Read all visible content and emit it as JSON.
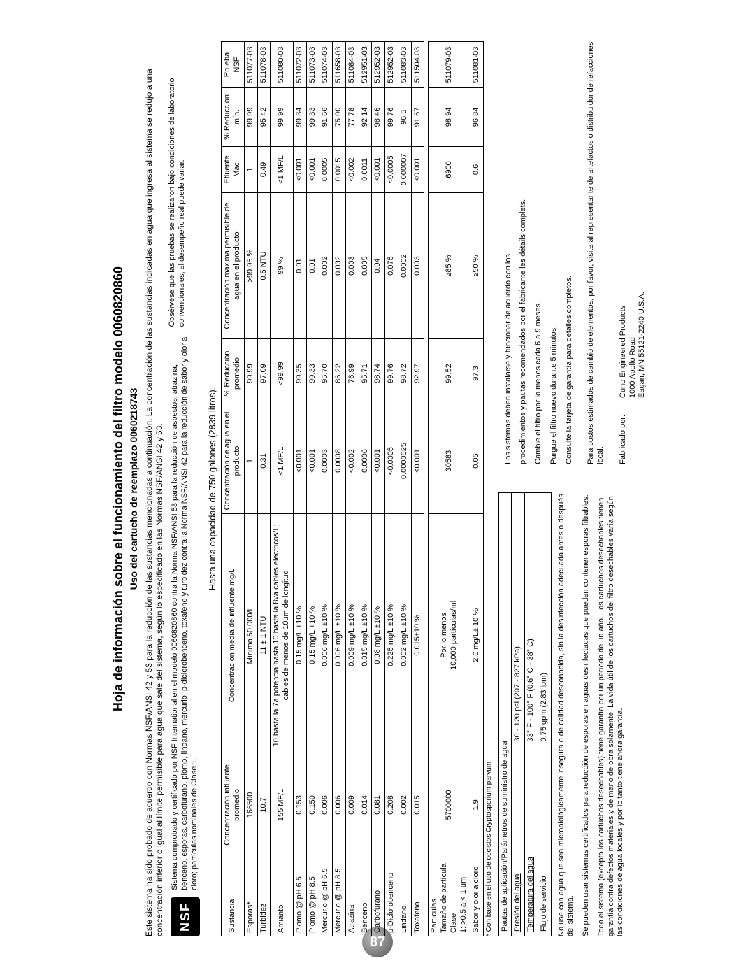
{
  "page_number": "87",
  "title": "Hoja de información sobre el funcionamiento del filtro modelo 0060820860",
  "subtitle": "Uso del cartucho de reemplazo 0060218743",
  "intro": "Este sistema ha sido probado de acuerdo con Normas NSF/ANSI 42 y 53 para la reducción de las sustancias mencionadas a continuación.  La concentración de las sustancias indicadas en agua que ingresa al sistema se redujo a una concentración inferior o igual al límite permisible para agua que sale del sistema, según lo especificado en las Normas NSF/ANSI 42 y 53.",
  "nsf_badge": "NSF",
  "nsf_text": "Sistema comprobado y certificado por NSF International en el modelo 0060820860 contra la Norma NSF/ANSI 53 para la reducción de asbestos, atrazina, benceno, esporas, carbofurano, plomo, lindano, mercurio, p-diclorobenceno, toxafeno y turbidez contra la Norma NSF/ANSI 42 para la reducción de sabor y olor a cloro; partículas nominales de Clase 1.",
  "right_note": "Obsérvese que las pruebas se realizaron bajo condiciones de laboratorio convencionales, el desempeño real puede variar.",
  "capacity": "Hasta una capacidad de 750 galones (2839 litros).",
  "headers": {
    "c0": "Sustancia",
    "c1": "Concentración influente promedio",
    "c2": "Concentración media de influente mg/L",
    "c3": "Concentración de agua en el producto",
    "c4": "% Reducción promedio",
    "c5": "Concentración máxima permisible de agua en el producto",
    "c6": "Efluente Mac",
    "c7": "% Reducción mín.",
    "c8": "Prueba NSF"
  },
  "rows": [
    {
      "c0": "Esporas*",
      "c1": "166500",
      "c2": "Mínimo 50,000/L",
      "c3": "1",
      "c4": "99.99",
      "c5": ">99.95 %",
      "c6": "1",
      "c7": "99.99",
      "c8": "511077-03"
    },
    {
      "c0": "Turbidez",
      "c1": "10.7",
      "c2": "11 ± 1 NTU",
      "c3": "0.31",
      "c4": "97.09",
      "c5": "0.5 NTU",
      "c6": "0.49",
      "c7": "95.42",
      "c8": "511078-03"
    },
    {
      "c0": "Amianto",
      "c1": "155 MF/L",
      "c2": "10 hasta la 7a potencia hasta 10 hasta la 8va cables eléctricos/L; cables de menos de 10um de longitud",
      "c3": "<1 MF/L",
      "c4": "<99.99",
      "c5": "99 %",
      "c6": "<1 MF/L",
      "c7": "99.99",
      "c8": "511080-03"
    },
    {
      "c0": "Plomo @ pH 6.5",
      "c1": "0.153",
      "c2": "0.15 mg/L +10 %",
      "c3": "<0.001",
      "c4": "99.35",
      "c5": "0.01",
      "c6": "<0.001",
      "c7": "99.34",
      "c8": "511072-03"
    },
    {
      "c0": "Plomo @ pH 8.5",
      "c1": "0.150",
      "c2": "0.15 mg/L +10 %",
      "c3": "<0.001",
      "c4": "99.33",
      "c5": "0.01",
      "c6": "<0.001",
      "c7": "99.33",
      "c8": "511073-03"
    },
    {
      "c0": "Mercurio @ pH 6.5",
      "c1": "0.006",
      "c2": "0.006 mg/L ±10 %",
      "c3": "0.0003",
      "c4": "95.70",
      "c5": "0.002",
      "c6": "0.0005",
      "c7": "91.66",
      "c8": "511074-03"
    },
    {
      "c0": "Mercurio @ pH 8.5",
      "c1": "0.006",
      "c2": "0.006 mg/L ±10 %",
      "c3": "0.0008",
      "c4": "86.22",
      "c5": "0.002",
      "c6": "0.0015",
      "c7": "75.00",
      "c8": "511658-03"
    },
    {
      "c0": "Atrazina",
      "c1": "0.009",
      "c2": "0.009 mg/L ±10 %",
      "c3": "<0.002",
      "c4": "76.99",
      "c5": "0.003",
      "c6": "<0.002",
      "c7": "77.78",
      "c8": "511084-03"
    },
    {
      "c0": "Benceno",
      "c1": "0.014",
      "c2": "0.015 mg/L ±10 %",
      "c3": "0.0006",
      "c4": "95.71",
      "c5": "0.005",
      "c6": "0.0011",
      "c7": "92.14",
      "c8": "512951-03"
    },
    {
      "c0": "Carbofurano",
      "c1": "0.081",
      "c2": "0.08 mg/L ±10 %",
      "c3": "<0.001",
      "c4": "98.74",
      "c5": "0.04",
      "c6": "<0.001",
      "c7": "98.46",
      "c8": "512952-03"
    },
    {
      "c0": "p-Diclorobenceno",
      "c1": "0.208",
      "c2": "0.225 mg/L ±10 %",
      "c3": "<0.0005",
      "c4": "99.76",
      "c5": "0.075",
      "c6": "<0.0005",
      "c7": "99.76",
      "c8": "512952-03"
    },
    {
      "c0": "Lindano",
      "c1": "0.002",
      "c2": "0.002 mg/L ±10 %",
      "c3": "0.0000025",
      "c4": "98.72",
      "c5": "0.0002",
      "c6": "0.000007",
      "c7": "96.5",
      "c8": "511083-03"
    },
    {
      "c0": "Toxafeno",
      "c1": "0.015",
      "c2": "0.015±10 %",
      "c3": "<0.001",
      "c4": "92.97",
      "c5": "0.003",
      "c6": "<0.001",
      "c7": "91.67",
      "c8": "511504.03"
    }
  ],
  "rows2": [
    {
      "c0": "Partículas\nTamaño de partícula Clase\n1: >0.5 a < 1 um",
      "c1": "5700000",
      "c2": "Por lo menos\n10,000 partículas/ml",
      "c3": "30583",
      "c4": "99.52",
      "c5": "≥85 %",
      "c6": "6900",
      "c7": "98.94",
      "c8": "511079-03"
    },
    {
      "c0": "Sabor y olor a cloro",
      "c1": "1.9",
      "c2": "2.0 mg/L± 10 %",
      "c3": "0.05",
      "c4": "97.3",
      "c5": "≥50 %",
      "c6": "0.6",
      "c7": "96.84",
      "c8": "511081-03"
    }
  ],
  "footnote": "* Con base en el uso de oocistos Cryptosporium parvum",
  "params_title": "Pautas de aplicación/Parámetros de suministro de agua",
  "params": [
    {
      "k": "Presión del agua",
      "v": "30 - 120 psi (207 - 827 kPa)"
    },
    {
      "k": "Temperatura del agua",
      "v": "33° F - 100° F (0.6° C - 38° C)"
    },
    {
      "k": "Flujo de servicio",
      "v": "0.75 gpm (2.83 lpm)"
    }
  ],
  "right_lines": {
    "l1": "Los sistemas deben instalarse y funcionar de acuerdo con los",
    "l2": "procedimientos y pautas recomendados por el fabricante les détails complets.",
    "l3": "Cambie el filtro por lo menos cada 6 a 9 meses.",
    "l4": "Purgue el filtro nuevo durante 5 minutos.",
    "l5": "Consulte la tarjeta de garantía para detalles completos."
  },
  "left_p1": "No use con agua que sea microbiológicamente insegura o de calidad desconocida, sin la desinfección adecuada antes o después del sistema.",
  "left_p2": "Se pueden usar sistemas certificados para reducción de esporas en aguas desinfectadas que pueden contener esporas filtrables.",
  "left_p3": "Todo el sistema (excepto los cartuchos desechables) tiene garantía por un período de un año. Los cartuchos desechables tienen garantía contra defectos materiales y de mano de obra solamente. La vida útil de los cartuchos del filtro desechables varía según las condiciones de agua locales y por lo tanto tiene ahora garantía.",
  "right_p1": "Para costos estimados de cambio de elementos, por favor, visite al representante de artefactos o distribuidor de refacciones local.",
  "manuf_label": "Fabricado por:",
  "manuf": {
    "l1": "Cuno Engineered Products",
    "l2": "1000 Apollo Road",
    "l3": "Eagan, MN 55121-2240 U.S.A."
  }
}
